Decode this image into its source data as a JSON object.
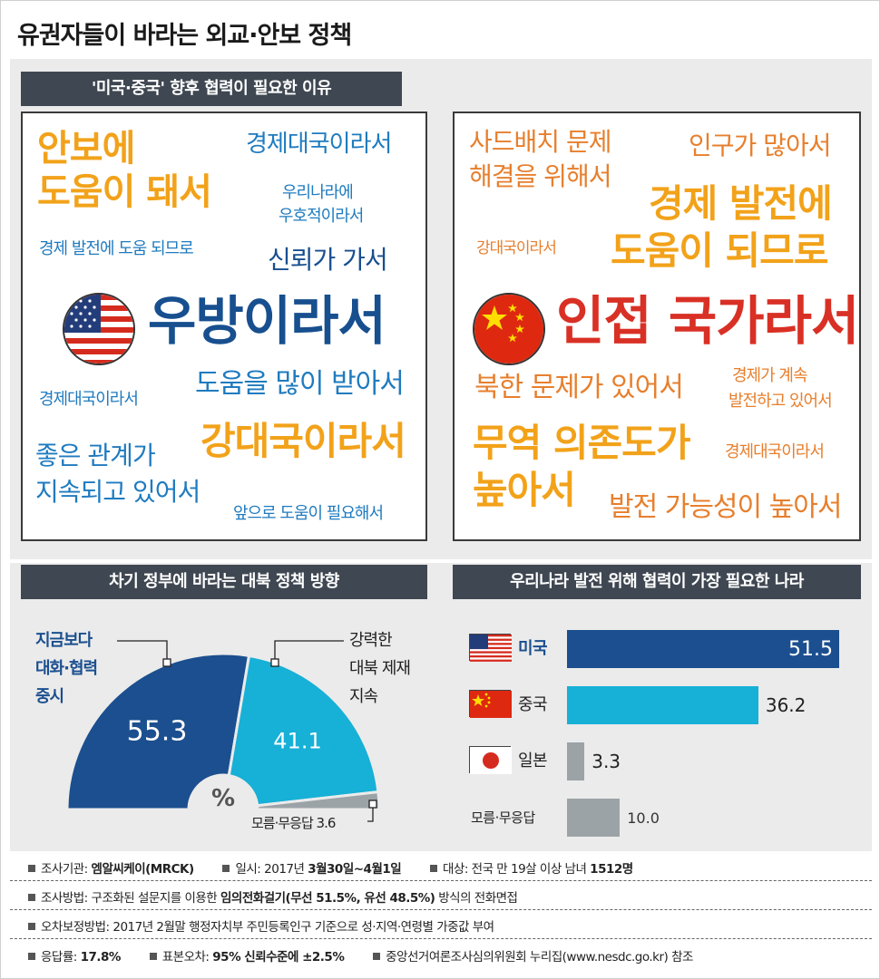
{
  "title": "유권자들이 바라는 외교·안보 정책",
  "section1": {
    "header": "'미국·중국' 향후 협력이 필요한 이유",
    "usa": {
      "main": "우방이라서",
      "w1a": "안보에",
      "w1b": "도움이 돼서",
      "w2": "경제대국이라서",
      "w3a": "우리나라에",
      "w3b": "우호적이라서",
      "w4": "경제 발전에 도움 되므로",
      "w5": "신뢰가 가서",
      "w6": "도움을 많이 받아서",
      "w7": "경제대국이라서",
      "w8": "강대국이라서",
      "w9a": "좋은 관계가",
      "w9b": "지속되고 있어서",
      "w10": "앞으로 도움이 필요해서"
    },
    "china": {
      "main": "인접 국가라서",
      "w1a": "사드배치 문제",
      "w1b": "해결을 위해서",
      "w2": "인구가 많아서",
      "w3a": "경제 발전에",
      "w3b": "도움이 되므로",
      "w4": "강대국이라서",
      "w5": "북한 문제가 있어서",
      "w6a": "경제가 계속",
      "w6b": "발전하고 있어서",
      "w7a": "무역 의존도가",
      "w7b": "높아서",
      "w8": "경제대국이라서",
      "w9": "발전 가능성이 높아서"
    }
  },
  "section2": {
    "header": "차기 정부에 바라는 대북 정책 방향",
    "unit": "%",
    "labels": {
      "dialogue_a": "지금보다",
      "dialogue_b": "대화·협력",
      "dialogue_c": "중시",
      "sanction_a": "강력한",
      "sanction_b": "대북 제재",
      "sanction_c": "지속",
      "unknown": "모름·무응답 3.6"
    },
    "value_labels": {
      "dialogue": "55.3",
      "sanction": "41.1"
    }
  },
  "section3": {
    "header": "우리나라 발전 위해 협력이 가장 필요한 나라"
  },
  "chart_data": [
    {
      "type": "pie",
      "title": "차기 정부에 바라는 대북 정책 방향",
      "unit": "%",
      "categories": [
        "지금보다 대화·협력 중시",
        "강력한 대북 제재 지속",
        "모름·무응답"
      ],
      "values": [
        55.3,
        41.1,
        3.6
      ],
      "colors": [
        "#1b4f8f",
        "#17b0d6",
        "#9ca3a7"
      ],
      "shape": "half-donut"
    },
    {
      "type": "bar",
      "orientation": "horizontal",
      "title": "우리나라 발전 위해 협력이 가장 필요한 나라",
      "categories": [
        "미국",
        "중국",
        "일본",
        "모름·무응답"
      ],
      "values": [
        51.5,
        36.2,
        3.3,
        10.0
      ],
      "value_labels": [
        "51.5",
        "36.2",
        "3.3",
        "10.0"
      ],
      "colors": [
        "#1b4f8f",
        "#17b0d6",
        "#9ca3a7",
        "#9ca3a7"
      ],
      "xlim": [
        0,
        51.5
      ]
    }
  ],
  "footer": {
    "l1a_k": "조사기관: ",
    "l1a_v": "엠알씨케이(MRCK)",
    "l1b_k": "일시: 2017년 ",
    "l1b_v": "3월30일~4월1일",
    "l1c_k": "대상: 전국 만 19살 이상 남녀 ",
    "l1c_v": "1512명",
    "l2_k": "조사방법: 구조화된 설문지를 이용한 ",
    "l2_v": "임의전화걸기(무선 51.5%, 유선 48.5%)",
    "l2_t": " 방식의 전화면접",
    "l3": "오차보정방법: 2017년 2월말 행정자치부 주민등록인구 기준으로 성·지역·연령별 가중값 부여",
    "l4a_k": "응답률: ",
    "l4a_v": "17.8%",
    "l4b_k": "표본오차: ",
    "l4b_v": "95% 신뢰수준에 ±2.5%",
    "l4c": "중앙선거여론조사심의위원회 누리집(www.nesdc.go.kr) 참조"
  },
  "colors": {
    "navy": "#1b4f8f",
    "sky": "#17b0d6",
    "gray": "#9ca3a7",
    "orange": "#f2a21a",
    "red": "#d93025",
    "header_bg": "#3f4752"
  }
}
